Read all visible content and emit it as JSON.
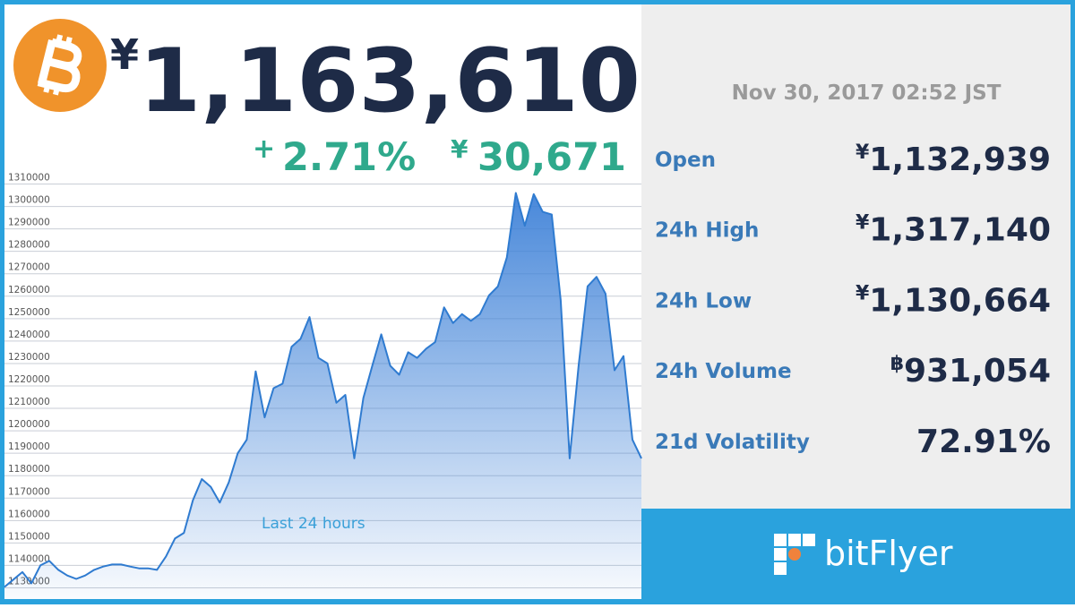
{
  "header": {
    "price": {
      "symbol": "¥",
      "amount": "1,163,610"
    },
    "change": {
      "sign": "+",
      "percent": "2.71%",
      "symbol": "¥",
      "amount": "30,671"
    }
  },
  "timestamp": "Nov 30, 2017 02:52 JST",
  "stats": [
    {
      "label": "Open",
      "symbol": "¥",
      "value": "1,132,939"
    },
    {
      "label": "24h High",
      "symbol": "¥",
      "value": "1,317,140"
    },
    {
      "label": "24h Low",
      "symbol": "¥",
      "value": "1,130,664"
    },
    {
      "label": "24h Volume",
      "symbol": "฿",
      "value": "931,054"
    },
    {
      "label": "21d Volatility",
      "value": "72.91%"
    }
  ],
  "brand": "bitFlyer",
  "chart_data": {
    "type": "area",
    "annotation": "Last 24 hours",
    "color": "#2f7bd0",
    "grid": true,
    "ylim": [
      1125000,
      1313000
    ],
    "yticks": [
      1130000,
      1140000,
      1150000,
      1160000,
      1170000,
      1180000,
      1190000,
      1200000,
      1210000,
      1220000,
      1230000,
      1240000,
      1250000,
      1260000,
      1270000,
      1280000,
      1290000,
      1300000,
      1310000
    ],
    "values": [
      1130400,
      1133700,
      1137000,
      1132000,
      1140000,
      1142000,
      1138000,
      1135500,
      1134000,
      1135500,
      1138000,
      1139500,
      1140400,
      1140400,
      1139500,
      1138700,
      1138700,
      1138000,
      1144000,
      1152000,
      1154500,
      1169000,
      1178500,
      1175000,
      1168000,
      1177000,
      1190000,
      1196000,
      1226500,
      1206000,
      1219000,
      1221000,
      1237500,
      1241000,
      1250700,
      1232500,
      1230000,
      1212500,
      1216000,
      1187700,
      1214600,
      1229000,
      1243000,
      1229000,
      1225000,
      1235000,
      1232500,
      1236600,
      1239500,
      1255000,
      1248000,
      1252000,
      1249000,
      1252000,
      1260300,
      1264400,
      1277300,
      1306000,
      1291400,
      1305500,
      1297600,
      1296400,
      1258200,
      1187700,
      1229000,
      1264400,
      1268600,
      1261100,
      1227000,
      1233300,
      1196000,
      1187700
    ]
  }
}
